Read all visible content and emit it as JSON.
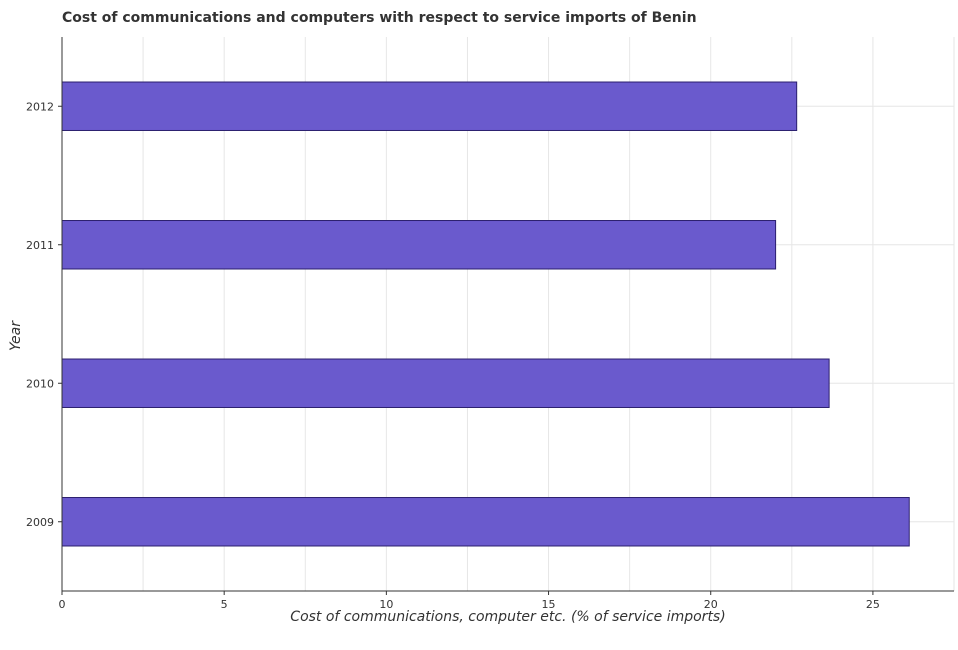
{
  "chart_data": {
    "type": "bar",
    "orientation": "horizontal",
    "title": "Cost of communications and computers with respect to service imports of Benin",
    "xlabel": "Cost of communications, computer etc. (% of service imports)",
    "ylabel": "Year",
    "categories": [
      "2009",
      "2010",
      "2011",
      "2012"
    ],
    "values": [
      26.12,
      23.65,
      22.0,
      22.65
    ],
    "xlim": [
      0,
      27.5
    ],
    "xticks": [
      0,
      5,
      10,
      15,
      20,
      25
    ],
    "grid": true,
    "bar_color": "#6a5acd",
    "bar_edge_color": "#2b1f6e"
  }
}
